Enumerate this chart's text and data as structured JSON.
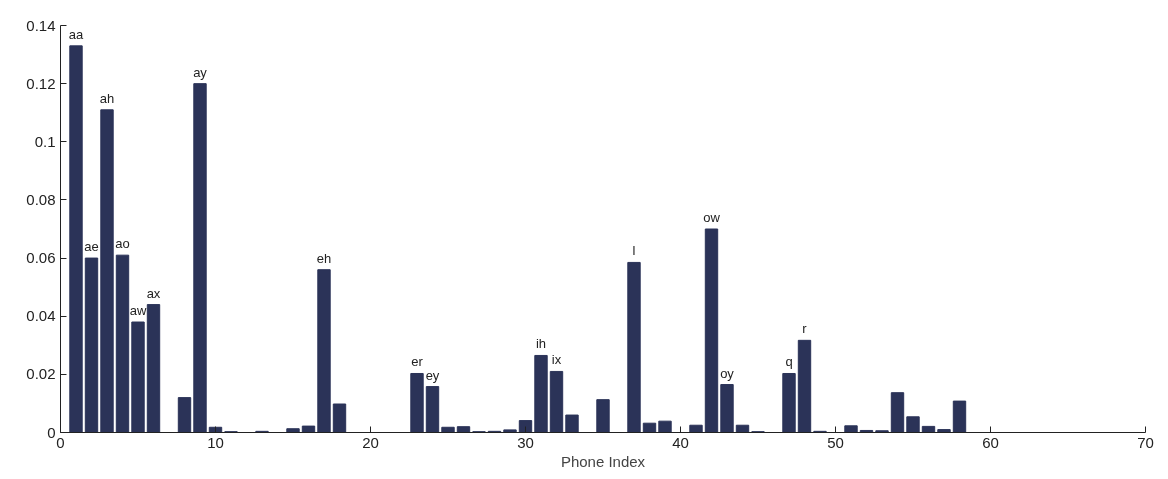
{
  "chart_data": {
    "type": "bar",
    "xlabel": "Phone Index",
    "x": [
      1,
      2,
      3,
      4,
      5,
      6,
      7,
      8,
      9,
      10,
      11,
      12,
      13,
      14,
      15,
      16,
      17,
      18,
      19,
      20,
      21,
      22,
      23,
      24,
      25,
      26,
      27,
      28,
      29,
      30,
      31,
      32,
      33,
      34,
      35,
      36,
      37,
      38,
      39,
      40,
      41,
      42,
      43,
      44,
      45,
      46,
      47,
      48,
      49,
      50,
      51,
      52,
      53,
      54,
      55,
      56,
      57,
      58,
      59,
      60,
      61
    ],
    "values": [
      0.133,
      0.06,
      0.111,
      0.061,
      0.038,
      0.044,
      0,
      0.012,
      0.12,
      0.0018,
      0.0003,
      0,
      0.0004,
      0,
      0.0013,
      0.0022,
      0.056,
      0.0098,
      0,
      0,
      0,
      0,
      0.0203,
      0.0158,
      0.0018,
      0.002,
      0.0003,
      0.0004,
      0.0009,
      0.0041,
      0.0265,
      0.021,
      0.006,
      0,
      0.0113,
      0,
      0.0585,
      0.0032,
      0.0039,
      0,
      0.0025,
      0.07,
      0.0165,
      0.0025,
      0.0003,
      0,
      0.0203,
      0.0317,
      0.0004,
      0,
      0.0023,
      0.0007,
      0.0006,
      0.0137,
      0.0054,
      0.0021,
      0.001,
      0.0108,
      0,
      0,
      0
    ],
    "color": "#2b3358",
    "xlim": [
      0,
      70
    ],
    "xticks": [
      0,
      10,
      20,
      30,
      40,
      50,
      60,
      70
    ],
    "ylim": [
      0,
      0.14
    ],
    "yticks": [
      0,
      0.02,
      0.04,
      0.06,
      0.08,
      0.1,
      0.12,
      0.14
    ],
    "grid": false,
    "annotations": [
      {
        "text": "aa",
        "x": 1,
        "y": 0.133
      },
      {
        "text": "ae",
        "x": 2,
        "y": 0.06
      },
      {
        "text": "ah",
        "x": 3,
        "y": 0.111
      },
      {
        "text": "ao",
        "x": 4,
        "y": 0.061
      },
      {
        "text": "aw",
        "x": 5,
        "y": 0.038
      },
      {
        "text": "ax",
        "x": 6,
        "y": 0.044
      },
      {
        "text": "ay",
        "x": 9,
        "y": 0.12
      },
      {
        "text": "eh",
        "x": 17,
        "y": 0.056
      },
      {
        "text": "er",
        "x": 23,
        "y": 0.0203
      },
      {
        "text": "ey",
        "x": 24,
        "y": 0.0158
      },
      {
        "text": "ih",
        "x": 31,
        "y": 0.0265
      },
      {
        "text": "ix",
        "x": 32,
        "y": 0.021
      },
      {
        "text": "l",
        "x": 37,
        "y": 0.0585
      },
      {
        "text": "ow",
        "x": 42,
        "y": 0.07
      },
      {
        "text": "oy",
        "x": 43,
        "y": 0.0165
      },
      {
        "text": "q",
        "x": 47,
        "y": 0.0203
      },
      {
        "text": "r",
        "x": 48,
        "y": 0.0317
      }
    ]
  }
}
